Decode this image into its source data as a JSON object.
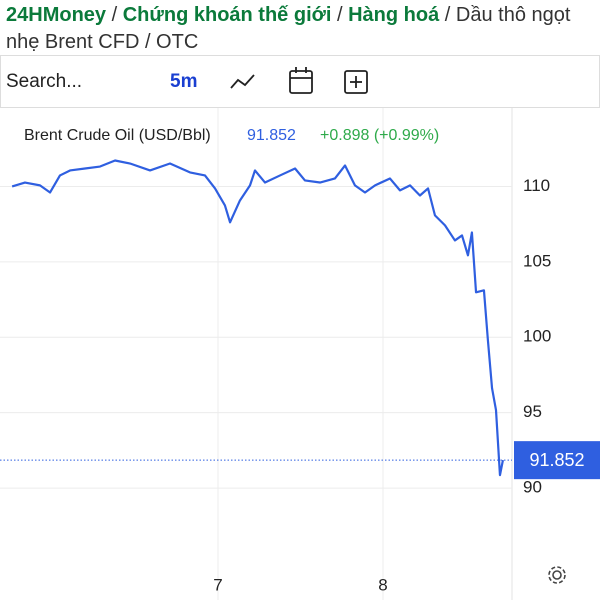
{
  "breadcrumb": {
    "items": [
      "24HMoney",
      "Chứng khoán thế giới",
      "Hàng hoá"
    ],
    "separator": "/",
    "current": "Dầu thô ngọt nhẹ Brent CFD / OTC"
  },
  "toolbar": {
    "search": "Search...",
    "interval": "5m"
  },
  "chart_data": {
    "type": "line",
    "change": "+0.898 (+0.99%)",
    "x": [
      5.752,
      5.83,
      5.921,
      5.982,
      6.042,
      6.103,
      6.194,
      6.285,
      6.376,
      6.467,
      6.588,
      6.709,
      6.83,
      6.921,
      6.982,
      7.042,
      7.073,
      7.133,
      7.194,
      7.224,
      7.285,
      7.376,
      7.467,
      7.527,
      7.618,
      7.709,
      7.77,
      7.83,
      7.891,
      7.952,
      8.042,
      8.103,
      8.164,
      8.224,
      8.273,
      8.315,
      8.376,
      8.436,
      8.479,
      8.515,
      8.539,
      8.564,
      8.612,
      8.636,
      8.661,
      8.685,
      8.709,
      8.727
    ],
    "series": [
      {
        "name": "Brent Crude Oil (USD/Bbl)",
        "color": "#2f5fe0",
        "values": [
          110.0,
          110.26,
          110.07,
          109.6,
          110.73,
          111.06,
          111.19,
          111.32,
          111.72,
          111.52,
          111.06,
          111.52,
          110.93,
          110.73,
          109.87,
          108.74,
          107.62,
          109.07,
          110.07,
          111.06,
          110.26,
          110.73,
          111.19,
          110.4,
          110.26,
          110.53,
          111.39,
          110.07,
          109.6,
          110.07,
          110.53,
          109.74,
          110.07,
          109.4,
          109.87,
          108.08,
          107.42,
          106.42,
          106.75,
          105.43,
          106.95,
          102.98,
          103.11,
          99.8,
          96.62,
          95.17,
          90.86,
          91.852
        ]
      }
    ],
    "xlim": [
      5.721,
      8.782
    ],
    "xticks": [
      7,
      8
    ],
    "ylim": [
      84.9,
      115.4
    ],
    "yticks": [
      90,
      95,
      100,
      105,
      110
    ],
    "grid": true
  }
}
